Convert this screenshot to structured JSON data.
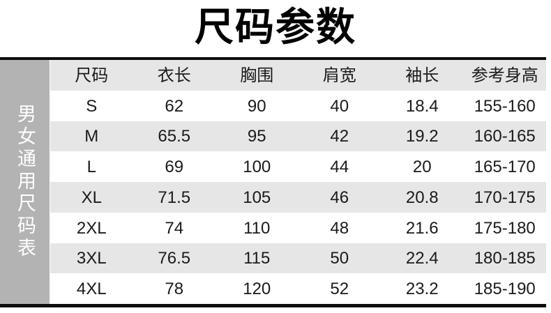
{
  "title": "尺码参数",
  "sidebar": {
    "label": "男女通用尺码表"
  },
  "chart_data": {
    "type": "table",
    "title": "尺码参数",
    "side_label": "男女通用尺码表",
    "columns": [
      "尺码",
      "衣长",
      "胸围",
      "肩宽",
      "袖长",
      "参考身高"
    ],
    "rows": [
      [
        "S",
        62,
        90,
        40,
        18.4,
        "155-160"
      ],
      [
        "M",
        65.5,
        95,
        42,
        19.2,
        "160-165"
      ],
      [
        "L",
        69,
        100,
        44,
        20,
        "165-170"
      ],
      [
        "XL",
        71.5,
        105,
        46,
        20.8,
        "170-175"
      ],
      [
        "2XL",
        74,
        110,
        48,
        21.6,
        "175-180"
      ],
      [
        "3XL",
        76.5,
        115,
        50,
        22.4,
        "180-185"
      ],
      [
        "4XL",
        78,
        120,
        52,
        23.2,
        "185-190"
      ]
    ],
    "layout": {
      "header_background": "striped-gray",
      "zebra_striping": true,
      "gridlines": false
    }
  },
  "colors": {
    "sidebar_bg": "#b3b3b3",
    "stripe_bg": "#e6e6e6",
    "border": "#0d0d0d",
    "text": "#1a1a1a",
    "sidebar_text": "#ffffff",
    "title_text": "#000000"
  }
}
